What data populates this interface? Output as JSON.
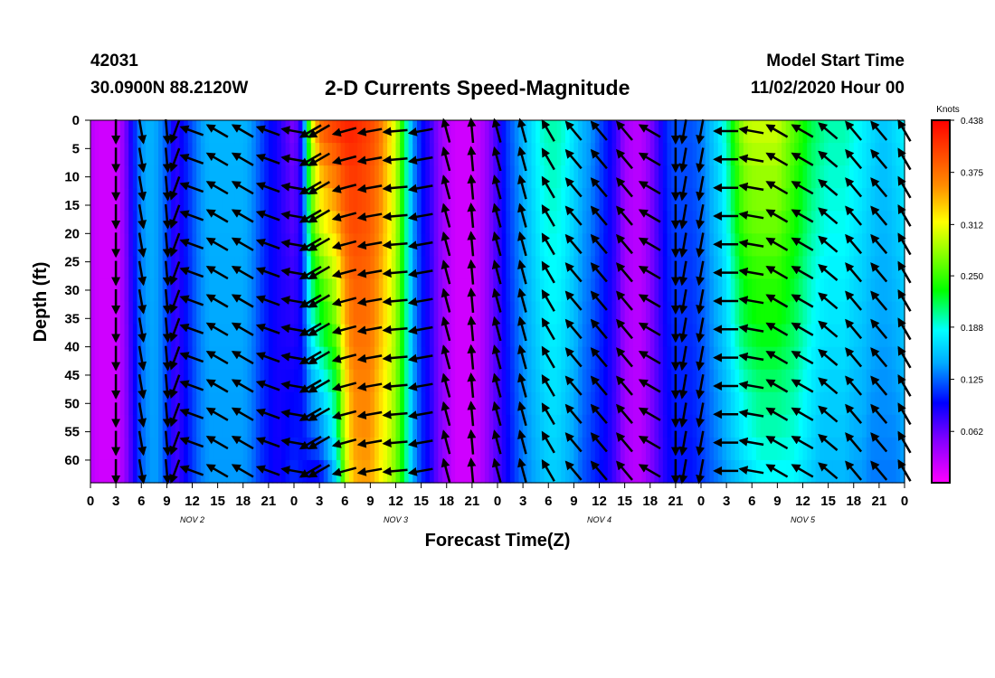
{
  "header": {
    "station_id": "42031",
    "location": "30.0900N 88.2120W",
    "title": "2-D Currents Speed-Magnitude",
    "model_start_label": "Model Start Time",
    "model_start_value": "11/02/2020 Hour 00"
  },
  "chart_data": {
    "type": "heatmap",
    "title": "2-D Currents Speed-Magnitude",
    "xlabel": "Forecast Time(Z)",
    "ylabel": "Depth (ft)",
    "x_ticks": [
      "0",
      "3",
      "6",
      "9",
      "12",
      "15",
      "18",
      "21",
      "0",
      "3",
      "6",
      "9",
      "12",
      "15",
      "18",
      "21",
      "0",
      "3",
      "6",
      "9",
      "12",
      "15",
      "18",
      "21",
      "0",
      "3",
      "6",
      "9",
      "12",
      "15",
      "18",
      "21",
      "0"
    ],
    "day_labels": [
      "NOV  2",
      "NOV  3",
      "NOV  4",
      "NOV  5"
    ],
    "xlim_hours": [
      0,
      96
    ],
    "y_ticks": [
      0,
      5,
      10,
      15,
      20,
      25,
      30,
      35,
      40,
      45,
      50,
      55,
      60
    ],
    "ylim": [
      0,
      64
    ],
    "y_inverted": true,
    "colorbar": {
      "unit": "Knots",
      "range": [
        0,
        0.438
      ],
      "tick_values": [
        "0.438",
        "0.375",
        "0.312",
        "0.250",
        "0.188",
        "0.125",
        "0.062"
      ]
    },
    "surface_speed_by_hour": [
      [
        0,
        0.03
      ],
      [
        1,
        0.02
      ],
      [
        2,
        0.02
      ],
      [
        3,
        0.02
      ],
      [
        4,
        0.05
      ],
      [
        5,
        0.1
      ],
      [
        6,
        0.14
      ],
      [
        7,
        0.15
      ],
      [
        8,
        0.14
      ],
      [
        9,
        0.12
      ],
      [
        10,
        0.08
      ],
      [
        11,
        0.1
      ],
      [
        12,
        0.12
      ],
      [
        13,
        0.14
      ],
      [
        14,
        0.15
      ],
      [
        15,
        0.15
      ],
      [
        16,
        0.15
      ],
      [
        17,
        0.15
      ],
      [
        18,
        0.15
      ],
      [
        19,
        0.14
      ],
      [
        20,
        0.12
      ],
      [
        21,
        0.1
      ],
      [
        22,
        0.09
      ],
      [
        23,
        0.07
      ],
      [
        24,
        0.05
      ],
      [
        25,
        0.1
      ],
      [
        26,
        0.3
      ],
      [
        27,
        0.38
      ],
      [
        28,
        0.4
      ],
      [
        29,
        0.41
      ],
      [
        30,
        0.42
      ],
      [
        31,
        0.42
      ],
      [
        32,
        0.41
      ],
      [
        33,
        0.4
      ],
      [
        34,
        0.38
      ],
      [
        35,
        0.34
      ],
      [
        36,
        0.3
      ],
      [
        37,
        0.22
      ],
      [
        38,
        0.14
      ],
      [
        39,
        0.1
      ],
      [
        40,
        0.08
      ],
      [
        41,
        0.05
      ],
      [
        42,
        0.03
      ],
      [
        43,
        0.02
      ],
      [
        44,
        0.02
      ],
      [
        45,
        0.02
      ],
      [
        46,
        0.03
      ],
      [
        47,
        0.05
      ],
      [
        48,
        0.08
      ],
      [
        49,
        0.11
      ],
      [
        50,
        0.13
      ],
      [
        51,
        0.15
      ],
      [
        52,
        0.17
      ],
      [
        53,
        0.19
      ],
      [
        54,
        0.2
      ],
      [
        55,
        0.2
      ],
      [
        56,
        0.19
      ],
      [
        57,
        0.17
      ],
      [
        58,
        0.15
      ],
      [
        59,
        0.14
      ],
      [
        60,
        0.12
      ],
      [
        61,
        0.1
      ],
      [
        62,
        0.08
      ],
      [
        63,
        0.04
      ],
      [
        64,
        0.03
      ],
      [
        65,
        0.03
      ],
      [
        66,
        0.05
      ],
      [
        67,
        0.08
      ],
      [
        68,
        0.11
      ],
      [
        69,
        0.12
      ],
      [
        70,
        0.12
      ],
      [
        71,
        0.12
      ],
      [
        72,
        0.13
      ],
      [
        73,
        0.15
      ],
      [
        74,
        0.17
      ],
      [
        75,
        0.2
      ],
      [
        76,
        0.25
      ],
      [
        77,
        0.29
      ],
      [
        78,
        0.3
      ],
      [
        79,
        0.3
      ],
      [
        80,
        0.3
      ],
      [
        81,
        0.3
      ],
      [
        82,
        0.28
      ],
      [
        83,
        0.26
      ],
      [
        84,
        0.24
      ],
      [
        85,
        0.22
      ],
      [
        86,
        0.21
      ],
      [
        87,
        0.2
      ],
      [
        88,
        0.2
      ],
      [
        89,
        0.2
      ],
      [
        90,
        0.19
      ],
      [
        91,
        0.18
      ],
      [
        92,
        0.17
      ],
      [
        93,
        0.16
      ],
      [
        94,
        0.16
      ],
      [
        95,
        0.17
      ],
      [
        96,
        0.18
      ]
    ],
    "deep_speed_by_hour": [
      [
        0,
        0.03
      ],
      [
        1,
        0.02
      ],
      [
        2,
        0.02
      ],
      [
        3,
        0.02
      ],
      [
        4,
        0.04
      ],
      [
        5,
        0.08
      ],
      [
        6,
        0.12
      ],
      [
        7,
        0.14
      ],
      [
        8,
        0.14
      ],
      [
        9,
        0.11
      ],
      [
        10,
        0.07
      ],
      [
        11,
        0.09
      ],
      [
        12,
        0.11
      ],
      [
        13,
        0.13
      ],
      [
        14,
        0.14
      ],
      [
        15,
        0.14
      ],
      [
        16,
        0.14
      ],
      [
        17,
        0.14
      ],
      [
        18,
        0.14
      ],
      [
        19,
        0.13
      ],
      [
        20,
        0.11
      ],
      [
        21,
        0.1
      ],
      [
        22,
        0.09
      ],
      [
        23,
        0.1
      ],
      [
        24,
        0.11
      ],
      [
        25,
        0.1
      ],
      [
        26,
        0.09
      ],
      [
        27,
        0.09
      ],
      [
        28,
        0.12
      ],
      [
        29,
        0.16
      ],
      [
        30,
        0.28
      ],
      [
        31,
        0.34
      ],
      [
        32,
        0.35
      ],
      [
        33,
        0.35
      ],
      [
        34,
        0.32
      ],
      [
        35,
        0.3
      ],
      [
        36,
        0.27
      ],
      [
        37,
        0.22
      ],
      [
        38,
        0.15
      ],
      [
        39,
        0.11
      ],
      [
        40,
        0.09
      ],
      [
        41,
        0.06
      ],
      [
        42,
        0.04
      ],
      [
        43,
        0.02
      ],
      [
        44,
        0.02
      ],
      [
        45,
        0.02
      ],
      [
        46,
        0.03
      ],
      [
        47,
        0.05
      ],
      [
        48,
        0.07
      ],
      [
        49,
        0.09
      ],
      [
        50,
        0.11
      ],
      [
        51,
        0.13
      ],
      [
        52,
        0.14
      ],
      [
        53,
        0.15
      ],
      [
        54,
        0.16
      ],
      [
        55,
        0.16
      ],
      [
        56,
        0.15
      ],
      [
        57,
        0.14
      ],
      [
        58,
        0.12
      ],
      [
        59,
        0.11
      ],
      [
        60,
        0.1
      ],
      [
        61,
        0.09
      ],
      [
        62,
        0.07
      ],
      [
        63,
        0.04
      ],
      [
        64,
        0.03
      ],
      [
        65,
        0.03
      ],
      [
        66,
        0.05
      ],
      [
        67,
        0.07
      ],
      [
        68,
        0.09
      ],
      [
        69,
        0.1
      ],
      [
        70,
        0.1
      ],
      [
        71,
        0.1
      ],
      [
        72,
        0.11
      ],
      [
        73,
        0.12
      ],
      [
        74,
        0.13
      ],
      [
        75,
        0.14
      ],
      [
        76,
        0.15
      ],
      [
        77,
        0.16
      ],
      [
        78,
        0.17
      ],
      [
        79,
        0.18
      ],
      [
        80,
        0.18
      ],
      [
        81,
        0.18
      ],
      [
        82,
        0.18
      ],
      [
        83,
        0.18
      ],
      [
        84,
        0.17
      ],
      [
        85,
        0.16
      ],
      [
        86,
        0.15
      ],
      [
        87,
        0.15
      ],
      [
        88,
        0.15
      ],
      [
        89,
        0.15
      ],
      [
        90,
        0.14
      ],
      [
        91,
        0.14
      ],
      [
        92,
        0.13
      ],
      [
        93,
        0.13
      ],
      [
        94,
        0.13
      ],
      [
        95,
        0.13
      ],
      [
        96,
        0.14
      ]
    ],
    "vector_depths_ft": [
      0,
      5,
      10,
      15,
      20,
      25,
      30,
      35,
      40,
      45,
      50,
      55,
      60
    ],
    "vector_direction_deg_by_hour": [
      [
        3,
        180
      ],
      [
        6,
        170
      ],
      [
        9,
        175
      ],
      [
        10,
        200
      ],
      [
        12,
        290
      ],
      [
        15,
        300
      ],
      [
        18,
        300
      ],
      [
        21,
        290
      ],
      [
        24,
        280
      ],
      [
        26,
        240
      ],
      [
        27,
        240
      ],
      [
        30,
        255
      ],
      [
        33,
        260
      ],
      [
        36,
        265
      ],
      [
        39,
        260
      ],
      [
        42,
        345
      ],
      [
        45,
        355
      ],
      [
        48,
        345
      ],
      [
        51,
        345
      ],
      [
        54,
        330
      ],
      [
        57,
        320
      ],
      [
        60,
        320
      ],
      [
        63,
        320
      ],
      [
        66,
        300
      ],
      [
        69,
        180
      ],
      [
        70,
        190
      ],
      [
        72,
        190
      ],
      [
        75,
        270
      ],
      [
        78,
        280
      ],
      [
        81,
        300
      ],
      [
        84,
        300
      ],
      [
        87,
        310
      ],
      [
        90,
        320
      ],
      [
        93,
        320
      ],
      [
        96,
        330
      ]
    ]
  }
}
